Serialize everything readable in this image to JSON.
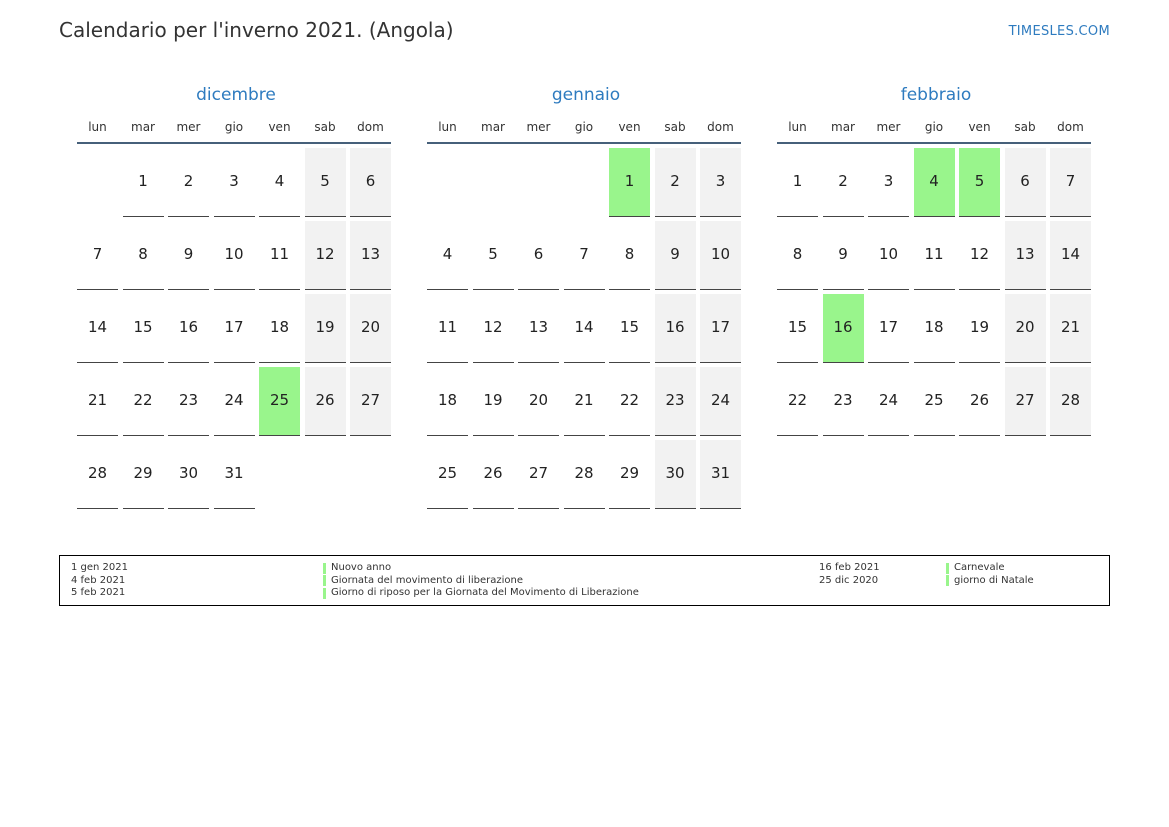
{
  "header": {
    "title": "Calendario per l'inverno 2021. (Angola)",
    "brand": "TIMESLES.COM"
  },
  "weekdays": [
    "lun",
    "mar",
    "mer",
    "gio",
    "ven",
    "sab",
    "dom"
  ],
  "colors": {
    "accent": "#2e7bbf",
    "holiday": "#99f58c",
    "weekend": "#f2f2f2",
    "rule": "#46607a"
  },
  "months": [
    {
      "name": "dicembre",
      "start_offset": 1,
      "days": 31,
      "holidays": [
        25
      ]
    },
    {
      "name": "gennaio",
      "start_offset": 4,
      "days": 31,
      "holidays": [
        1
      ]
    },
    {
      "name": "febbraio",
      "start_offset": 0,
      "days": 28,
      "holidays": [
        4,
        5,
        16
      ]
    }
  ],
  "legend": {
    "left": [
      {
        "date": "1 gen 2021",
        "name": "Nuovo anno"
      },
      {
        "date": "4 feb 2021",
        "name": "Giornata del movimento di liberazione"
      },
      {
        "date": "5 feb 2021",
        "name": "Giorno di riposo per la Giornata del Movimento di Liberazione"
      }
    ],
    "right": [
      {
        "date": "16 feb 2021",
        "name": "Carnevale"
      },
      {
        "date": "25 dic 2020",
        "name": "giorno di Natale"
      }
    ]
  }
}
